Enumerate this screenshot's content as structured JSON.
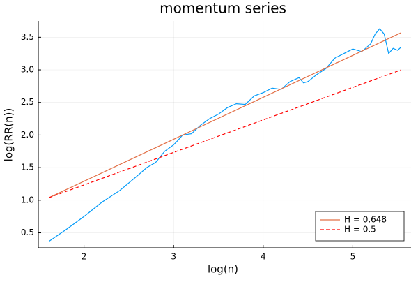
{
  "chart_data": {
    "type": "line",
    "title": "momentum series",
    "x_label": "log(n)",
    "y_label": "log(RR(n))",
    "xlim": [
      1.49,
      5.65
    ],
    "ylim": [
      0.27,
      3.75
    ],
    "xticks": [
      2,
      3,
      4,
      5
    ],
    "yticks": [
      0.5,
      {
        "value": 1,
        "label": "1.0"
      },
      1.5,
      {
        "value": 2,
        "label": "2.0"
      },
      2.5,
      {
        "value": 3,
        "label": "3.0"
      },
      3.5
    ],
    "grid": true,
    "legend": "bottom-right",
    "series": [
      {
        "color": "#009af9",
        "dash": false,
        "x": [
          1.61,
          1.8,
          2.0,
          2.2,
          2.4,
          2.6,
          2.7,
          2.8,
          2.9,
          3.0,
          3.05,
          3.1,
          3.2,
          3.3,
          3.4,
          3.5,
          3.6,
          3.7,
          3.8,
          3.9,
          4.0,
          4.1,
          4.2,
          4.3,
          4.4,
          4.45,
          4.5,
          4.6,
          4.7,
          4.8,
          4.9,
          5.0,
          5.1,
          5.2,
          5.25,
          5.3,
          5.35,
          5.4,
          5.45,
          5.5,
          5.54
        ],
        "values": [
          0.37,
          0.55,
          0.75,
          0.97,
          1.15,
          1.38,
          1.5,
          1.58,
          1.75,
          1.85,
          1.92,
          2.0,
          2.02,
          2.15,
          2.25,
          2.32,
          2.42,
          2.48,
          2.47,
          2.6,
          2.65,
          2.72,
          2.7,
          2.82,
          2.88,
          2.8,
          2.82,
          2.93,
          3.02,
          3.18,
          3.25,
          3.32,
          3.28,
          3.4,
          3.55,
          3.63,
          3.55,
          3.25,
          3.33,
          3.3,
          3.35
        ]
      },
      {
        "name": "H = 0.648",
        "color": "#e26f46",
        "dash": false,
        "x": [
          1.61,
          5.54
        ],
        "values": [
          1.04,
          3.57
        ]
      },
      {
        "name": "H = 0.5",
        "color": "#ff0000",
        "dash": true,
        "x": [
          1.61,
          5.54
        ],
        "values": [
          1.04,
          3.0
        ]
      }
    ]
  }
}
